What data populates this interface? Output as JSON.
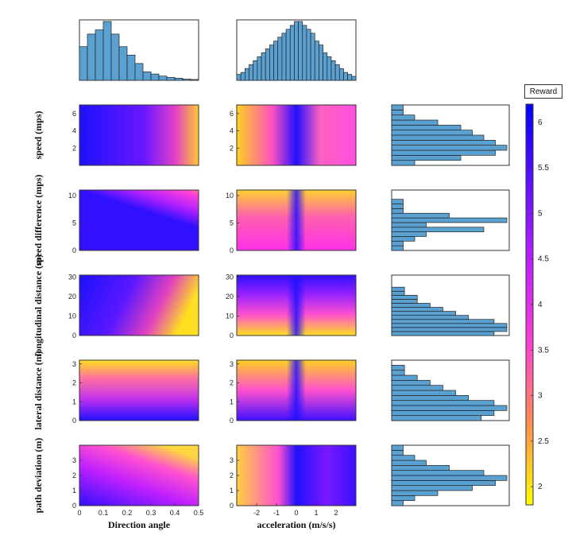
{
  "chart_data": {
    "type": "heatmap",
    "colorbar": {
      "title": "Reward",
      "range": [
        1.8,
        6.2
      ],
      "ticks": [
        "2",
        "2.5",
        "3",
        "3.5",
        "4",
        "4.5",
        "5",
        "5.5",
        "6"
      ],
      "tick_values": [
        2,
        2.5,
        3,
        3.5,
        4,
        4.5,
        5,
        5.5,
        6
      ],
      "colors": [
        "#ffff00",
        "#ff9050",
        "#ff40d0",
        "#c020ff",
        "#6010ff",
        "#0000ff"
      ]
    },
    "columns": [
      {
        "xlabel": "Direction angle",
        "xlim": [
          0,
          0.5
        ],
        "xticks": [
          "0",
          "0.1",
          "0.2",
          "0.3",
          "0.4",
          "0.5"
        ],
        "xtick_values": [
          0,
          0.1,
          0.2,
          0.3,
          0.4,
          0.5
        ]
      },
      {
        "xlabel": "acceleration (m/s/s)",
        "xlim": [
          -3,
          3
        ],
        "xticks": [
          "-2",
          "-1",
          "0",
          "1",
          "2"
        ],
        "xtick_values": [
          -2,
          -1,
          0,
          1,
          2
        ]
      }
    ],
    "rows": [
      {
        "ylabel": "speed (mps)",
        "ylim": [
          0,
          7
        ],
        "yticks": [
          "2",
          "4",
          "6"
        ],
        "ytick_values": [
          2,
          4,
          6
        ],
        "hist_counts": [
          2,
          6,
          9,
          10,
          9,
          8,
          7,
          6,
          4,
          2,
          1,
          1
        ]
      },
      {
        "ylabel": "speed difference (mps)",
        "ylim": [
          0,
          11
        ],
        "yticks": [
          "0",
          "5",
          "10"
        ],
        "ytick_values": [
          0,
          5,
          10
        ],
        "hist_counts": [
          1,
          1,
          2,
          3,
          8,
          3,
          10,
          5,
          1,
          1,
          1,
          0,
          0
        ]
      },
      {
        "ylabel": "longitudinal distance (m)",
        "ylim": [
          0,
          31
        ],
        "yticks": [
          "0",
          "10",
          "20",
          "30"
        ],
        "ytick_values": [
          0,
          10,
          20,
          30
        ],
        "hist_counts": [
          8,
          9,
          9,
          8,
          6,
          5,
          4,
          3,
          2,
          2,
          1,
          1,
          0,
          0,
          0
        ]
      },
      {
        "ylabel": "lateral distance (m)",
        "ylim": [
          0,
          3.2
        ],
        "yticks": [
          "0",
          "1",
          "2",
          "3"
        ],
        "ytick_values": [
          0,
          1,
          2,
          3
        ],
        "hist_counts": [
          7,
          8,
          9,
          8,
          6,
          5,
          4,
          3,
          2,
          1,
          1,
          0
        ]
      },
      {
        "ylabel": "path deviation (m)",
        "ylim": [
          0,
          4
        ],
        "yticks": [
          "0",
          "1",
          "2",
          "3"
        ],
        "ytick_values": [
          0,
          1,
          2,
          3
        ],
        "hist_counts": [
          1,
          2,
          4,
          7,
          9,
          10,
          8,
          5,
          3,
          2,
          1,
          1
        ]
      }
    ],
    "top_histograms": [
      {
        "variable": "Direction angle",
        "counts": [
          8,
          11,
          12,
          14,
          11,
          8,
          6,
          4,
          2,
          1.5,
          1,
          0.7,
          0.5,
          0.3,
          0.2
        ]
      },
      {
        "variable": "acceleration (m/s/s)",
        "counts": [
          1.5,
          2,
          3,
          4,
          5,
          6,
          7,
          8,
          9,
          10,
          11,
          12,
          13,
          14,
          15,
          15,
          14,
          13,
          12,
          10,
          9,
          7,
          6,
          5,
          4,
          3,
          2,
          1.5,
          1
        ]
      }
    ]
  }
}
